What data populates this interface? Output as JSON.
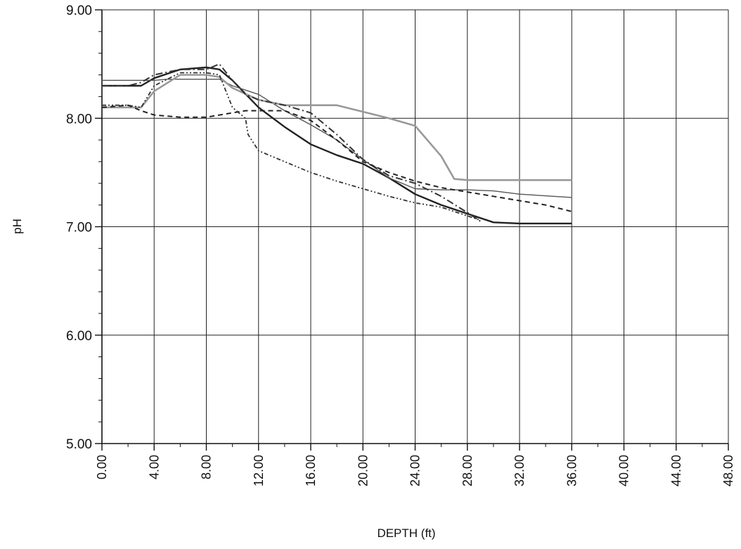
{
  "chart_data": {
    "type": "line",
    "title": "",
    "xlabel": "DEPTH  (ft)",
    "ylabel": "pH",
    "xlim": [
      0,
      48
    ],
    "ylim": [
      5,
      9
    ],
    "x_ticks": [
      0,
      4,
      8,
      12,
      16,
      20,
      24,
      28,
      32,
      36,
      40,
      44,
      48
    ],
    "x_tick_labels": [
      "0.00",
      "4.00",
      "8.00",
      "12.00",
      "16.00",
      "20.00",
      "24.00",
      "28.00",
      "32.00",
      "36.00",
      "40.00",
      "44.00",
      "48.00"
    ],
    "y_ticks": [
      5,
      6,
      7,
      8,
      9
    ],
    "y_tick_labels": [
      "5.00",
      "6.00",
      "7.00",
      "8.00",
      "9.00"
    ],
    "grid": true,
    "legend": "none",
    "series": [
      {
        "color": "#222222",
        "dash": "",
        "width": 2.4,
        "x": [
          0,
          3,
          4,
          6,
          8,
          9,
          10,
          12,
          14,
          16,
          18,
          20,
          22,
          24,
          26,
          28,
          30,
          32,
          36
        ],
        "y": [
          8.3,
          8.3,
          8.37,
          8.45,
          8.47,
          8.45,
          8.35,
          8.1,
          7.92,
          7.76,
          7.66,
          7.58,
          7.45,
          7.3,
          7.2,
          7.12,
          7.04,
          7.03,
          7.03
        ]
      },
      {
        "color": "#555555",
        "dash": "",
        "width": 1.4,
        "x": [
          0,
          3,
          4,
          5,
          8,
          9,
          10,
          12,
          14,
          16,
          18,
          20,
          22,
          24,
          26,
          28,
          30,
          32,
          36
        ],
        "y": [
          8.35,
          8.35,
          8.35,
          8.36,
          8.36,
          8.36,
          8.3,
          8.22,
          8.07,
          7.94,
          7.8,
          7.62,
          7.45,
          7.35,
          7.34,
          7.34,
          7.33,
          7.3,
          7.27
        ]
      },
      {
        "color": "#999999",
        "dash": "",
        "width": 2.6,
        "x": [
          0,
          3,
          4,
          6,
          8,
          9,
          10,
          12,
          14,
          16,
          18,
          20,
          22,
          24,
          26,
          27,
          28,
          30,
          32,
          36
        ],
        "y": [
          8.1,
          8.1,
          8.25,
          8.4,
          8.4,
          8.38,
          8.28,
          8.17,
          8.12,
          8.12,
          8.12,
          8.06,
          8.0,
          7.93,
          7.65,
          7.44,
          7.43,
          7.43,
          7.43,
          7.43
        ]
      },
      {
        "color": "#333333",
        "dash": "10,4,2,4",
        "width": 2.0,
        "x": [
          0,
          2,
          3,
          4,
          6,
          8,
          9,
          10,
          11,
          12,
          14,
          16,
          18,
          20,
          22,
          24,
          26,
          28,
          29
        ],
        "y": [
          8.3,
          8.3,
          8.33,
          8.4,
          8.45,
          8.45,
          8.5,
          8.35,
          8.22,
          8.17,
          8.12,
          8.05,
          7.85,
          7.62,
          7.47,
          7.4,
          7.28,
          7.13,
          7.05
        ]
      },
      {
        "color": "#222222",
        "dash": "7,5",
        "width": 2.0,
        "x": [
          0,
          2,
          3,
          4,
          6,
          8,
          9,
          10,
          11,
          12,
          14,
          16,
          18,
          20,
          22,
          24,
          26,
          28,
          30,
          32,
          34,
          36
        ],
        "y": [
          8.1,
          8.12,
          8.07,
          8.03,
          8.01,
          8.01,
          8.03,
          8.05,
          8.07,
          8.07,
          8.07,
          7.98,
          7.8,
          7.6,
          7.5,
          7.42,
          7.36,
          7.32,
          7.28,
          7.24,
          7.2,
          7.14
        ]
      },
      {
        "color": "#333333",
        "dash": "6,3,2,3,2,3",
        "width": 1.8,
        "x": [
          0,
          2,
          3,
          4,
          6,
          8,
          9,
          10,
          11,
          11.2,
          12,
          14,
          16,
          18,
          20,
          22,
          24,
          26,
          28,
          29
        ],
        "y": [
          8.12,
          8.12,
          8.1,
          8.3,
          8.42,
          8.42,
          8.4,
          8.1,
          8.0,
          7.85,
          7.7,
          7.6,
          7.5,
          7.42,
          7.35,
          7.28,
          7.22,
          7.18,
          7.1,
          7.06
        ]
      }
    ]
  }
}
